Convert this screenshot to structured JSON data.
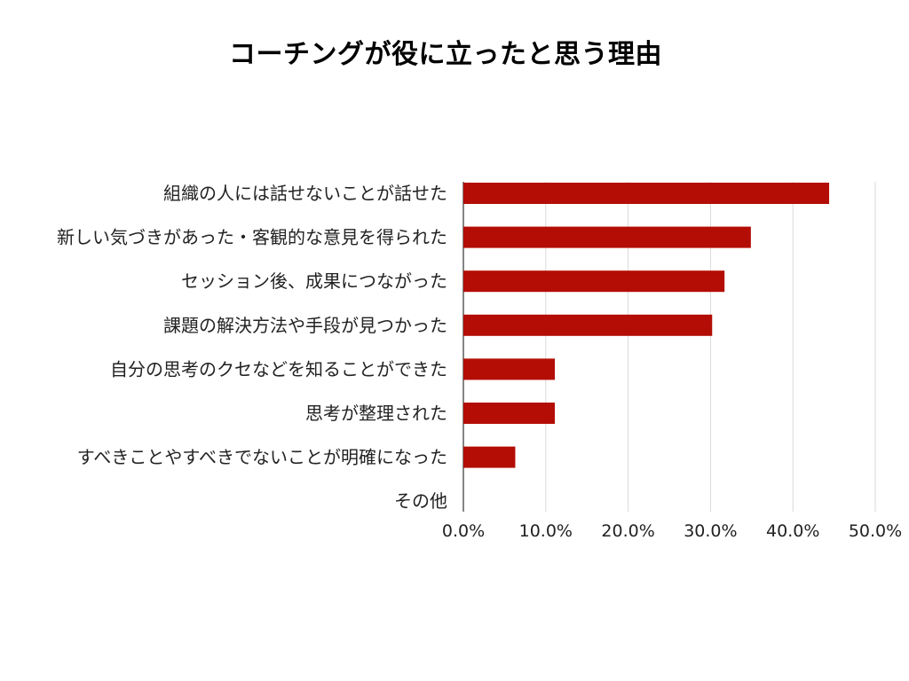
{
  "chart_data": {
    "type": "bar",
    "orientation": "horizontal",
    "title": "コーチングが役に立ったと思う理由",
    "categories": [
      "組織の人には話せないことが話せた",
      "新しい気づきがあった・客観的な意見を得られた",
      "セッション後、成果につながった",
      "課題の解決方法や手段が見つかった",
      "自分の思考のクセなどを知ることができた",
      "思考が整理された",
      "すべきことやすべきでないことが明確になった",
      "その他"
    ],
    "values": [
      44.4,
      34.9,
      31.7,
      30.2,
      11.1,
      11.1,
      6.3,
      0
    ],
    "xlim": [
      0,
      50
    ],
    "xticks": [
      "0.0%",
      "10.0%",
      "20.0%",
      "30.0%",
      "40.0%",
      "50.0%"
    ],
    "xtick_values": [
      0,
      10,
      20,
      30,
      40,
      50
    ],
    "xlabel": "",
    "ylabel": "",
    "grid": true,
    "legend": "none",
    "bar_color": "#b30d05",
    "grid_color": "#d9d9d9"
  }
}
